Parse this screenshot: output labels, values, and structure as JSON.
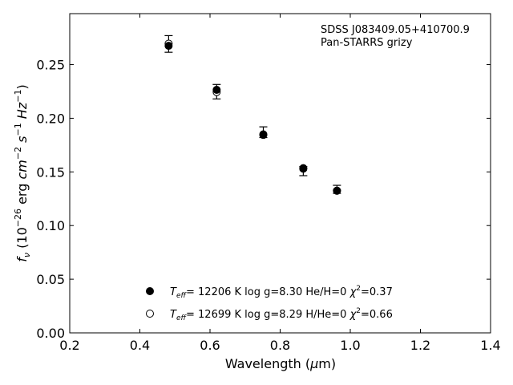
{
  "chart_data": {
    "type": "scatter",
    "title": "",
    "xlabel": {
      "pre": "Wavelength (",
      "mu": "μ",
      "post": "m)"
    },
    "ylabel": {
      "f": "f",
      "nu": "ν",
      "open": " (10",
      "exp1": "−26",
      "mid": " erg ",
      "cm": "cm",
      "exp2": "−2",
      "s": " s",
      "exp3": "−1",
      "hz": " Hz",
      "exp4": "−1",
      "close": ")"
    },
    "xlim": [
      0.2,
      1.4
    ],
    "ylim": [
      0.0,
      0.2975
    ],
    "xticks": [
      "0.2",
      "0.4",
      "0.6",
      "0.8",
      "1.0",
      "1.2",
      "1.4"
    ],
    "yticks": [
      "0.00",
      "0.05",
      "0.10",
      "0.15",
      "0.20",
      "0.25"
    ],
    "annotations": [
      "SDSS J083409.05+410700.9",
      "Pan-STARRS grizy"
    ],
    "observed": {
      "x": [
        0.482,
        0.619,
        0.752,
        0.866,
        0.962
      ],
      "y": [
        0.269,
        0.2245,
        0.1865,
        0.1515,
        0.1335
      ],
      "yerr_lo": [
        0.0075,
        0.0065,
        0.0045,
        0.005,
        0.0035
      ],
      "yerr_hi": [
        0.008,
        0.007,
        0.0055,
        0.0035,
        0.004
      ]
    },
    "series": [
      {
        "marker": "filled",
        "legend": {
          "teff": "T",
          "eff": "eff",
          "rest": "= 12206 K  log g=8.30  He/H=0  ",
          "chi": "χ",
          "two": "2",
          "val": "=0.37"
        },
        "x": [
          0.482,
          0.619,
          0.752,
          0.866,
          0.962
        ],
        "y": [
          0.2675,
          0.2265,
          0.185,
          0.1535,
          0.1325
        ]
      },
      {
        "marker": "open",
        "legend": {
          "teff": "T",
          "eff": "eff",
          "rest": "= 12699 K  log g=8.29  H/He=0  ",
          "chi": "χ",
          "two": "2",
          "val": "=0.66"
        },
        "x": [
          0.482,
          0.619,
          0.752,
          0.866,
          0.962
        ],
        "y": [
          0.2695,
          0.2245,
          0.1845,
          0.153,
          0.1325
        ]
      }
    ],
    "legend_position": "lower-center",
    "grid": false
  }
}
